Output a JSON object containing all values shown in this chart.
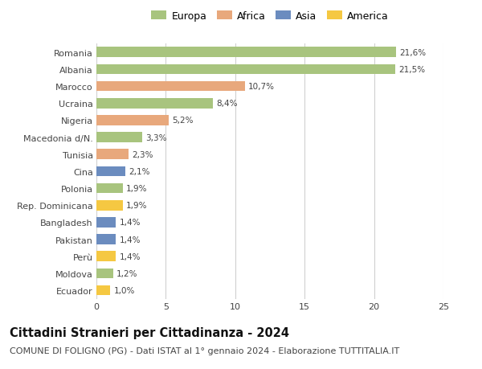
{
  "countries": [
    "Romania",
    "Albania",
    "Marocco",
    "Ucraina",
    "Nigeria",
    "Macedonia d/N.",
    "Tunisia",
    "Cina",
    "Polonia",
    "Rep. Dominicana",
    "Bangladesh",
    "Pakistan",
    "Perù",
    "Moldova",
    "Ecuador"
  ],
  "values": [
    21.6,
    21.5,
    10.7,
    8.4,
    5.2,
    3.3,
    2.3,
    2.1,
    1.9,
    1.9,
    1.4,
    1.4,
    1.4,
    1.2,
    1.0
  ],
  "labels": [
    "21,6%",
    "21,5%",
    "10,7%",
    "8,4%",
    "5,2%",
    "3,3%",
    "2,3%",
    "2,1%",
    "1,9%",
    "1,9%",
    "1,4%",
    "1,4%",
    "1,4%",
    "1,2%",
    "1,0%"
  ],
  "continents": [
    "Europa",
    "Europa",
    "Africa",
    "Europa",
    "Africa",
    "Europa",
    "Africa",
    "Asia",
    "Europa",
    "America",
    "Asia",
    "Asia",
    "America",
    "Europa",
    "America"
  ],
  "colors": {
    "Europa": "#a8c47e",
    "Africa": "#e8a87c",
    "Asia": "#6b8cbf",
    "America": "#f5c842"
  },
  "xlim": [
    0,
    25
  ],
  "xticks": [
    0,
    5,
    10,
    15,
    20,
    25
  ],
  "title": "Cittadini Stranieri per Cittadinanza - 2024",
  "subtitle": "COMUNE DI FOLIGNO (PG) - Dati ISTAT al 1° gennaio 2024 - Elaborazione TUTTITALIA.IT",
  "bg_color": "#ffffff",
  "grid_color": "#d0d0d0",
  "bar_height": 0.6,
  "title_fontsize": 10.5,
  "subtitle_fontsize": 8,
  "label_fontsize": 7.5,
  "tick_fontsize": 8,
  "legend_fontsize": 9
}
